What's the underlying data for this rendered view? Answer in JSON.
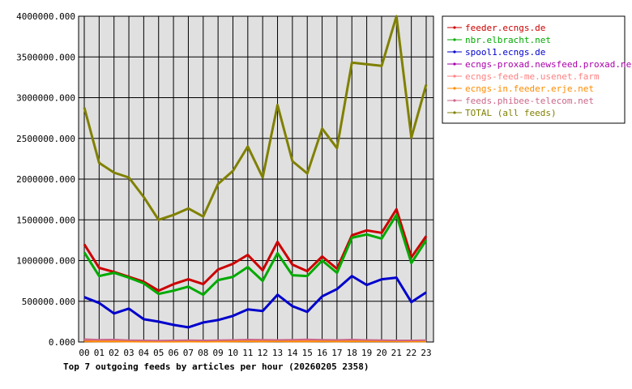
{
  "chart_data": {
    "type": "line",
    "title": "Top 7 outgoing feeds by articles per hour (20260205 2358)",
    "xlabel": "",
    "ylabel": "",
    "categories": [
      "00",
      "01",
      "02",
      "03",
      "04",
      "05",
      "06",
      "07",
      "08",
      "09",
      "10",
      "11",
      "12",
      "13",
      "14",
      "15",
      "16",
      "17",
      "18",
      "19",
      "20",
      "21",
      "22",
      "23"
    ],
    "ylim": [
      0,
      4000000
    ],
    "yticks": [
      "0.000",
      "500000.000",
      "1000000.000",
      "1500000.000",
      "2000000.000",
      "2500000.000",
      "3000000.000",
      "3500000.000",
      "4000000.000"
    ],
    "grid": true,
    "legend_position": "right",
    "series": [
      {
        "name": "feeder.ecngs.de",
        "color": "#cc0000",
        "values": [
          1200000,
          910000,
          860000,
          800000,
          740000,
          630000,
          710000,
          770000,
          710000,
          890000,
          960000,
          1070000,
          880000,
          1230000,
          950000,
          870000,
          1050000,
          900000,
          1310000,
          1370000,
          1340000,
          1630000,
          1040000,
          1300000
        ]
      },
      {
        "name": "nbr.elbracht.net",
        "color": "#00aa00",
        "values": [
          1100000,
          810000,
          850000,
          790000,
          720000,
          590000,
          630000,
          680000,
          580000,
          760000,
          800000,
          920000,
          750000,
          1090000,
          820000,
          810000,
          1000000,
          850000,
          1280000,
          1320000,
          1270000,
          1560000,
          970000,
          1250000
        ]
      },
      {
        "name": "spool1.ecngs.de",
        "color": "#0000cc",
        "values": [
          550000,
          480000,
          350000,
          410000,
          280000,
          250000,
          210000,
          180000,
          240000,
          270000,
          320000,
          400000,
          380000,
          580000,
          440000,
          370000,
          560000,
          650000,
          810000,
          700000,
          770000,
          790000,
          490000,
          610000
        ]
      },
      {
        "name": "ecngs-proxad.newsfeed.proxad.net",
        "color": "#aa00aa",
        "values": [
          25000,
          18000,
          22000,
          15000,
          12000,
          10000,
          12000,
          15000,
          12000,
          14000,
          17000,
          20000,
          18000,
          16000,
          17000,
          19000,
          18000,
          16000,
          20000,
          17000,
          16000,
          15000,
          14000,
          15000
        ]
      },
      {
        "name": "ecngs-feed-me.usenet.farm",
        "color": "#ff8080",
        "values": [
          30000,
          22000,
          25000,
          18000,
          15000,
          13000,
          15000,
          17000,
          15000,
          17000,
          20000,
          25000,
          22000,
          20000,
          22000,
          25000,
          22000,
          20000,
          25000,
          20000,
          18000,
          17000,
          16000,
          17000
        ]
      },
      {
        "name": "ecngs-in.feeder.erje.net",
        "color": "#ff8c00",
        "values": [
          8000,
          6000,
          6000,
          5000,
          4000,
          4000,
          4000,
          5000,
          4000,
          5000,
          6000,
          7000,
          6000,
          7000,
          6000,
          6000,
          7000,
          6000,
          8000,
          7000,
          7000,
          7000,
          6000,
          6000
        ]
      },
      {
        "name": "feeds.phibee-telecom.net",
        "color": "#cc6688",
        "values": [
          35000,
          28000,
          30000,
          22000,
          20000,
          18000,
          20000,
          22000,
          20000,
          22000,
          25000,
          30000,
          28000,
          25000,
          28000,
          32000,
          28000,
          25000,
          30000,
          25000,
          22000,
          20000,
          20000,
          22000
        ]
      },
      {
        "name": "TOTAL (all feeds)",
        "color": "#808000",
        "values": [
          2880000,
          2200000,
          2080000,
          2020000,
          1780000,
          1500000,
          1560000,
          1640000,
          1540000,
          1940000,
          2100000,
          2400000,
          2020000,
          2910000,
          2220000,
          2070000,
          2620000,
          2380000,
          3430000,
          3410000,
          3390000,
          4000000,
          2510000,
          3160000
        ]
      }
    ]
  }
}
